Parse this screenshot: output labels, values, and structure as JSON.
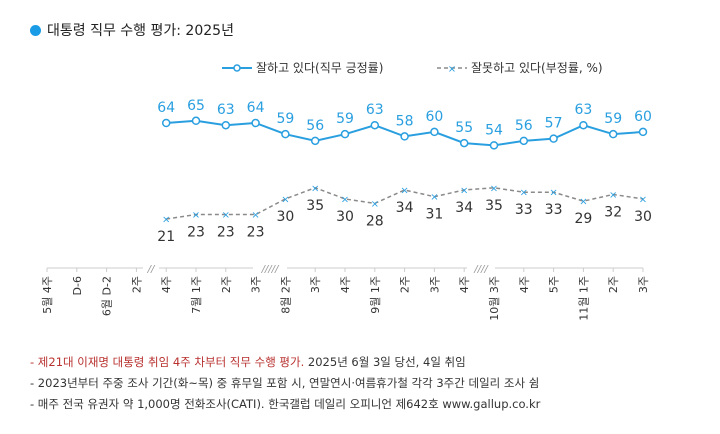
{
  "title": "대통령 직무 수행 평가: 2025년",
  "colors": {
    "positive": "#2a9fe0",
    "negative_line": "#8a8a8a",
    "negative_marker": "#2a9fe0",
    "note_red": "#b8312f"
  },
  "chart_data": {
    "type": "line",
    "title": "대통령 직무 수행 평가: 2025년",
    "categories": [
      "5월 4주",
      "D-6",
      "6월 D-2",
      "2주",
      "4주",
      "7월 1주",
      "2주",
      "3주",
      "8월 2주",
      "3주",
      "4주",
      "9월 1주",
      "2주",
      "3주",
      "4주",
      "10월 3주",
      "4주",
      "5주",
      "11월 1주",
      "2주",
      "3주"
    ],
    "series": [
      {
        "name": "잘하고 있다(직무 긍정률)",
        "values": [
          null,
          null,
          null,
          null,
          64,
          65,
          63,
          64,
          59,
          56,
          59,
          63,
          58,
          60,
          55,
          54,
          56,
          57,
          63,
          59,
          60
        ]
      },
      {
        "name": "잘못하고 있다(부정률, %)",
        "values": [
          null,
          null,
          null,
          null,
          21,
          23,
          23,
          23,
          30,
          35,
          30,
          28,
          34,
          31,
          34,
          35,
          33,
          33,
          29,
          32,
          30
        ]
      }
    ],
    "axis_breaks": [
      "//",
      "/////",
      "////"
    ],
    "grid": false,
    "legend": "top-right"
  },
  "notes": [
    {
      "red": "- 제21대 이재명 대통령 취임 4주 차부터 직무 수행 평가.",
      "rest": " 2025년 6월 3일 당선, 4일 취임"
    },
    {
      "red": "",
      "rest": "- 2023년부터 주중 조사 기간(화~목) 중 휴무일 포함 시, 연말연시·여름휴가철 각각 3주간 데일리 조사 쉼"
    },
    {
      "red": "",
      "rest": "- 매주 전국 유권자 약 1,000명 전화조사(CATI). 한국갤럽 데일리 오피니언 제642호 www.gallup.co.kr"
    }
  ]
}
